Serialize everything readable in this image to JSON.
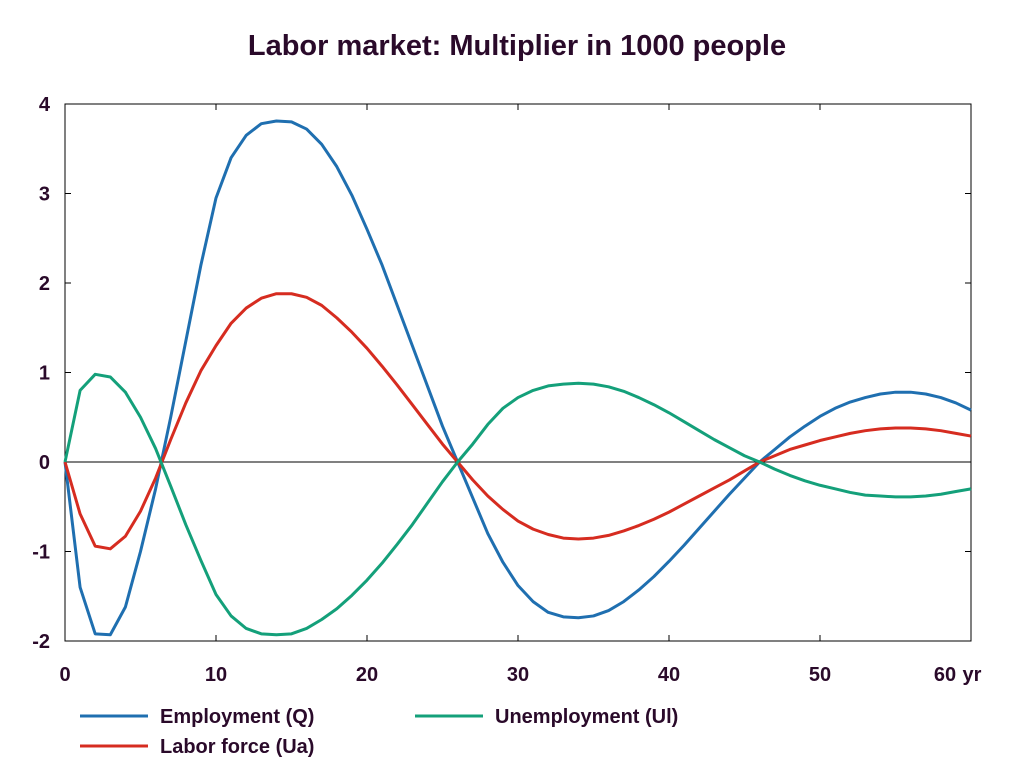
{
  "chart_data": {
    "type": "line",
    "title": "Labor market: Multiplier in 1000 people",
    "x_unit_label": "yr",
    "xlim": [
      0,
      60
    ],
    "ylim": [
      -2,
      4
    ],
    "x_ticks": [
      0,
      10,
      20,
      30,
      40,
      50,
      60
    ],
    "y_ticks": [
      -2,
      -1,
      0,
      1,
      2,
      3,
      4
    ],
    "grid": false,
    "zero_line": true,
    "legend_position": "bottom",
    "series": [
      {
        "name": "Employment (Q)",
        "color": "#1f6fb0",
        "x": [
          0,
          1,
          2,
          3,
          4,
          5,
          6,
          7,
          8,
          9,
          10,
          11,
          12,
          13,
          14,
          15,
          16,
          17,
          18,
          19,
          20,
          21,
          22,
          23,
          24,
          25,
          26,
          27,
          28,
          29,
          30,
          31,
          32,
          33,
          34,
          35,
          36,
          37,
          38,
          39,
          40,
          41,
          42,
          43,
          44,
          45,
          46,
          47,
          48,
          49,
          50,
          51,
          52,
          53,
          54,
          55,
          56,
          57,
          58,
          59,
          60
        ],
        "y": [
          0,
          -1.4,
          -1.92,
          -1.93,
          -1.62,
          -1.0,
          -0.3,
          0.5,
          1.35,
          2.2,
          2.95,
          3.4,
          3.65,
          3.78,
          3.81,
          3.8,
          3.72,
          3.55,
          3.3,
          2.98,
          2.6,
          2.2,
          1.75,
          1.3,
          0.85,
          0.4,
          0,
          -0.4,
          -0.8,
          -1.12,
          -1.38,
          -1.56,
          -1.68,
          -1.73,
          -1.74,
          -1.72,
          -1.66,
          -1.56,
          -1.43,
          -1.28,
          -1.11,
          -0.93,
          -0.74,
          -0.55,
          -0.36,
          -0.18,
          0.0,
          0.14,
          0.28,
          0.4,
          0.51,
          0.6,
          0.67,
          0.72,
          0.76,
          0.78,
          0.78,
          0.76,
          0.72,
          0.66,
          0.58
        ]
      },
      {
        "name": "Labor force (Ua)",
        "color": "#d62c20",
        "x": [
          0,
          1,
          2,
          3,
          4,
          5,
          6,
          7,
          8,
          9,
          10,
          11,
          12,
          13,
          14,
          15,
          16,
          17,
          18,
          19,
          20,
          21,
          22,
          23,
          24,
          25,
          26,
          27,
          28,
          29,
          30,
          31,
          32,
          33,
          34,
          35,
          36,
          37,
          38,
          39,
          40,
          41,
          42,
          43,
          44,
          45,
          46,
          47,
          48,
          49,
          50,
          51,
          52,
          53,
          54,
          55,
          56,
          57,
          58,
          59,
          60
        ],
        "y": [
          0,
          -0.58,
          -0.94,
          -0.97,
          -0.83,
          -0.55,
          -0.18,
          0.25,
          0.66,
          1.02,
          1.3,
          1.55,
          1.72,
          1.83,
          1.88,
          1.88,
          1.84,
          1.75,
          1.61,
          1.45,
          1.27,
          1.07,
          0.86,
          0.64,
          0.42,
          0.2,
          0,
          -0.2,
          -0.38,
          -0.53,
          -0.66,
          -0.75,
          -0.81,
          -0.85,
          -0.86,
          -0.85,
          -0.82,
          -0.77,
          -0.71,
          -0.64,
          -0.56,
          -0.47,
          -0.38,
          -0.29,
          -0.2,
          -0.1,
          0.0,
          0.07,
          0.14,
          0.19,
          0.24,
          0.28,
          0.32,
          0.35,
          0.37,
          0.38,
          0.38,
          0.37,
          0.35,
          0.32,
          0.29
        ]
      },
      {
        "name": "Unemployment (Ul)",
        "color": "#14a07a",
        "x": [
          0,
          1,
          2,
          3,
          4,
          5,
          6,
          7,
          8,
          9,
          10,
          11,
          12,
          13,
          14,
          15,
          16,
          17,
          18,
          19,
          20,
          21,
          22,
          23,
          24,
          25,
          26,
          27,
          28,
          29,
          30,
          31,
          32,
          33,
          34,
          35,
          36,
          37,
          38,
          39,
          40,
          41,
          42,
          43,
          44,
          45,
          46,
          47,
          48,
          49,
          50,
          51,
          52,
          53,
          54,
          55,
          56,
          57,
          58,
          59,
          60
        ],
        "y": [
          0,
          0.8,
          0.98,
          0.95,
          0.78,
          0.5,
          0.15,
          -0.27,
          -0.7,
          -1.1,
          -1.48,
          -1.72,
          -1.86,
          -1.92,
          -1.93,
          -1.92,
          -1.86,
          -1.76,
          -1.64,
          -1.49,
          -1.32,
          -1.13,
          -0.92,
          -0.7,
          -0.46,
          -0.22,
          0,
          0.2,
          0.42,
          0.6,
          0.72,
          0.8,
          0.85,
          0.87,
          0.88,
          0.87,
          0.84,
          0.79,
          0.72,
          0.64,
          0.55,
          0.45,
          0.35,
          0.25,
          0.16,
          0.07,
          0.0,
          -0.08,
          -0.15,
          -0.21,
          -0.26,
          -0.3,
          -0.34,
          -0.37,
          -0.38,
          -0.39,
          -0.39,
          -0.38,
          -0.36,
          -0.33,
          -0.3
        ]
      }
    ]
  }
}
